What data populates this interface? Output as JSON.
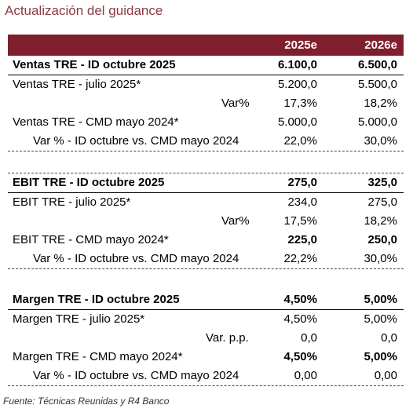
{
  "title": "Actualización del guidance",
  "columns": [
    "2025e",
    "2026e"
  ],
  "sections": [
    {
      "rows": [
        {
          "label": "Ventas TRE - ID octubre 2025",
          "v1": "6.100,0",
          "v2": "6.500,0",
          "bold": true
        },
        {
          "label": "Ventas TRE - julio 2025*",
          "v1": "5.200,0",
          "v2": "5.500,0"
        },
        {
          "label": "Var%",
          "v1": "17,3%",
          "v2": "18,2%"
        },
        {
          "label": "Ventas TRE - CMD mayo 2024*",
          "v1": "5.000,0",
          "v2": "5.000,0"
        },
        {
          "label": "Var % - ID octubre vs. CMD mayo 2024",
          "v1": "22,0%",
          "v2": "30,0%"
        }
      ]
    },
    {
      "rows": [
        {
          "label": "EBIT TRE - ID octubre 2025",
          "v1": "275,0",
          "v2": "325,0",
          "bold": true
        },
        {
          "label": "EBIT TRE - julio 2025*",
          "v1": "234,0",
          "v2": "275,0"
        },
        {
          "label": "Var%",
          "v1": "17,5%",
          "v2": "18,2%"
        },
        {
          "label": "EBIT TRE  - CMD mayo 2024*",
          "v1": "225,0",
          "v2": "250,0",
          "boldvals": true
        },
        {
          "label": "Var % - ID octubre vs. CMD mayo 2024",
          "v1": "22,2%",
          "v2": "30,0%"
        }
      ]
    },
    {
      "rows": [
        {
          "label": "Margen TRE - ID octubre 2025",
          "v1": "4,50%",
          "v2": "5,00%",
          "bold": true
        },
        {
          "label": "Margen TRE - julio 2025*",
          "v1": "4,50%",
          "v2": "5,00%"
        },
        {
          "label": "Var. p.p.",
          "v1": "0,0",
          "v2": "0,0"
        },
        {
          "label": "Margen TRE - CMD mayo 2024*",
          "v1": "4,50%",
          "v2": "5,00%",
          "boldvals": true
        },
        {
          "label": "Var % - ID octubre vs. CMD mayo 2024",
          "v1": "0,00",
          "v2": "0,00"
        }
      ]
    }
  ],
  "source": "Fuente: Técnicas Reunidas y R4 Banco"
}
